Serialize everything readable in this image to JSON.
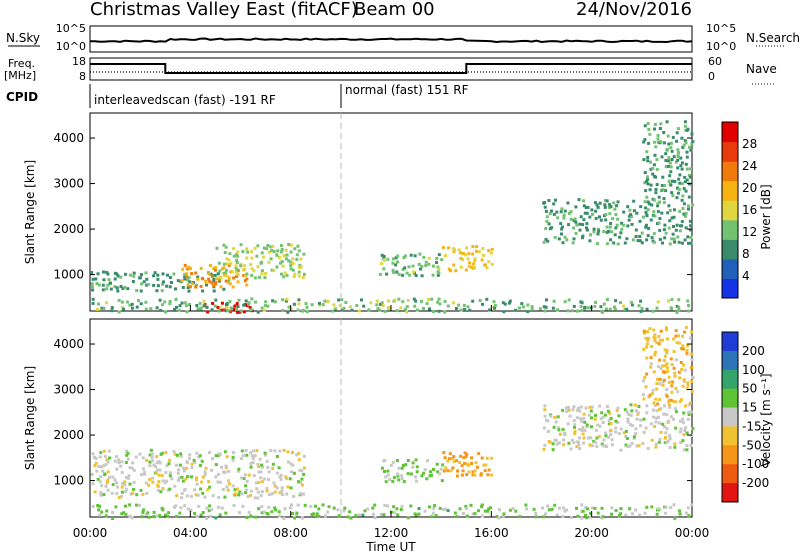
{
  "header": {
    "title": "Christmas Valley East (fitACF)",
    "beam": "Beam 00",
    "date": "24/Nov/2016"
  },
  "strips": {
    "nsky_label": "N.Sky",
    "nsearch_label": "N.Search",
    "freq_label_1": "Freq.",
    "freq_label_2": "[MHz]",
    "nave_label": "Nave",
    "cpid_label": "CPID",
    "noise_ticks": [
      "10^5",
      "10^0"
    ],
    "freq_ticks": [
      "18",
      "8"
    ],
    "nave_ticks": [
      "60",
      "0"
    ],
    "cpid_segments": [
      {
        "text": "interleavedscan (fast) -191 RF"
      },
      {
        "text": "normal (fast) 151 RF"
      }
    ]
  },
  "colorbars": {
    "power": {
      "label": "Power [dB]",
      "ticks": [
        "4",
        "8",
        "12",
        "16",
        "20",
        "24",
        "28"
      ],
      "colors": [
        "#1433e6",
        "#2060b8",
        "#3a8a6c",
        "#72c272",
        "#e2d640",
        "#f6b412",
        "#f07a0c",
        "#e83a0a",
        "#e00000"
      ]
    },
    "velocity": {
      "label": "Velocity [m s⁻¹]",
      "ticks": [
        "200",
        "100",
        "50",
        "15",
        "-15",
        "-50",
        "-100",
        "-200"
      ],
      "colors": [
        "#1f3cd6",
        "#2e74b8",
        "#35a36c",
        "#5fc435",
        "#c8c8c8",
        "#f0c232",
        "#f59618",
        "#ee5a10",
        "#e21414"
      ]
    }
  },
  "chart_data": [
    {
      "type": "heatmap",
      "panel": "power",
      "xlabel": "Time UT",
      "ylabel": "Slant Range [km]",
      "x_ticks": [
        "00:00",
        "04:00",
        "08:00",
        "12:00",
        "16:00",
        "20:00",
        "00:00"
      ],
      "y_ticks": [
        "1000",
        "2000",
        "3000",
        "4000"
      ],
      "xlim_hours": [
        0,
        24
      ],
      "ylim_km": [
        200,
        4550
      ],
      "mode_change_hour": 10,
      "regions": [
        {
          "t0": 0.0,
          "t1": 5.5,
          "r0": 650,
          "r1": 1100,
          "value_db": 10
        },
        {
          "t0": 3.6,
          "t1": 6.2,
          "r0": 750,
          "r1": 1250,
          "value_db": 22
        },
        {
          "t0": 5.0,
          "t1": 8.5,
          "r0": 950,
          "r1": 1700,
          "value_db": 14
        },
        {
          "t0": 4.5,
          "t1": 6.5,
          "r0": 200,
          "r1": 420,
          "value_db": 30
        },
        {
          "t0": 0.0,
          "t1": 24.0,
          "r0": 200,
          "r1": 500,
          "value_db": 12
        },
        {
          "t0": 11.5,
          "t1": 14.0,
          "r0": 1000,
          "r1": 1500,
          "value_db": 12
        },
        {
          "t0": 14.0,
          "t1": 16.0,
          "r0": 1100,
          "r1": 1650,
          "value_db": 18
        },
        {
          "t0": 18.0,
          "t1": 24.0,
          "r0": 1700,
          "r1": 2700,
          "value_db": 10
        },
        {
          "t0": 22.0,
          "t1": 24.0,
          "r0": 2700,
          "r1": 4400,
          "value_db": 10
        }
      ]
    },
    {
      "type": "heatmap",
      "panel": "velocity",
      "xlabel": "Time UT",
      "ylabel": "Slant Range [km]",
      "x_ticks": [
        "00:00",
        "04:00",
        "08:00",
        "12:00",
        "16:00",
        "20:00",
        "00:00"
      ],
      "y_ticks": [
        "1000",
        "2000",
        "3000",
        "4000"
      ],
      "xlim_hours": [
        0,
        24
      ],
      "ylim_km": [
        200,
        4550
      ],
      "mode_change_hour": 10,
      "regions": [
        {
          "t0": 0.0,
          "t1": 8.5,
          "r0": 650,
          "r1": 1700,
          "value_ms": 0
        },
        {
          "t0": 0.0,
          "t1": 24.0,
          "r0": 200,
          "r1": 500,
          "value_ms": 40
        },
        {
          "t0": 11.5,
          "t1": 14.0,
          "r0": 1000,
          "r1": 1500,
          "value_ms": 40
        },
        {
          "t0": 14.0,
          "t1": 16.0,
          "r0": 1100,
          "r1": 1650,
          "value_ms": -90
        },
        {
          "t0": 18.0,
          "t1": 24.0,
          "r0": 1700,
          "r1": 2700,
          "value_ms": 0
        },
        {
          "t0": 22.0,
          "t1": 24.0,
          "r0": 2700,
          "r1": 4400,
          "value_ms": -60
        }
      ]
    }
  ]
}
